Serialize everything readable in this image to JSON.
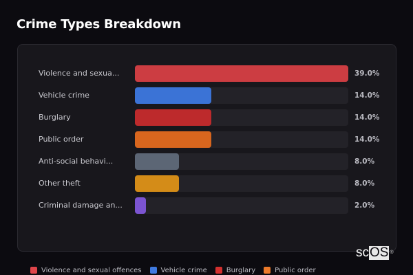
{
  "header": {
    "title": "Crime Types Breakdown"
  },
  "chart_data": {
    "type": "bar",
    "orientation": "horizontal",
    "title": "Crime Types Breakdown",
    "categories": [
      "Violence and sexual offences",
      "Vehicle crime",
      "Burglary",
      "Public order",
      "Anti-social behaviour",
      "Other theft",
      "Criminal damage and arson"
    ],
    "display_labels": [
      "Violence and sexua...",
      "Vehicle crime",
      "Burglary",
      "Public order",
      "Anti-social behavi...",
      "Other theft",
      "Criminal damage an..."
    ],
    "values": [
      39.0,
      14.0,
      14.0,
      14.0,
      8.0,
      8.0,
      2.0
    ],
    "value_labels": [
      "39.0%",
      "14.0%",
      "14.0%",
      "14.0%",
      "8.0%",
      "8.0%",
      "2.0%"
    ],
    "colors": [
      "#cc3d42",
      "#3b73d6",
      "#bd2a2c",
      "#d8661e",
      "#5c6675",
      "#d48c18",
      "#7b54d1"
    ],
    "xlim": [
      0,
      39.0
    ],
    "unit": "%",
    "legend_position": "bottom",
    "grid": false
  },
  "legend": [
    {
      "label": "Violence and sexual offences",
      "color": "#e0454a"
    },
    {
      "label": "Vehicle crime",
      "color": "#3f7ae0"
    },
    {
      "label": "Burglary",
      "color": "#d3302f"
    },
    {
      "label": "Public order",
      "color": "#ec7a2a"
    }
  ],
  "watermark": {
    "left": "sc",
    "boxed": "OS",
    "mark": "®"
  }
}
